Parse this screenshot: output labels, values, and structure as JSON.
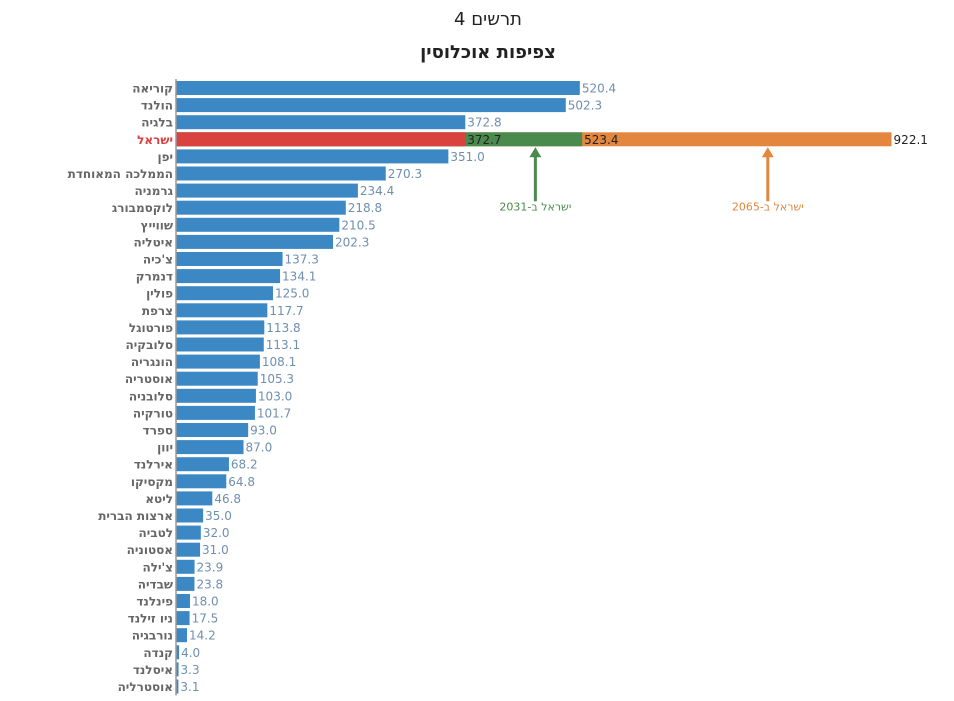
{
  "chart_data": {
    "type": "bar",
    "title": "תרשים 4",
    "subtitle": "צפיפות אוכלוסין",
    "categories": [
      "קוריאה",
      "הולנד",
      "בלגיה",
      "ישראל",
      "יפן",
      "הממלכה המאוחדת",
      "גרמניה",
      "לוקסמבורג",
      "שווייץ",
      "איטליה",
      "צ'כיה",
      "דנמרק",
      "פולין",
      "צרפת",
      "פורטוגל",
      "סלובקיה",
      "הונגריה",
      "אוסטריה",
      "סלובניה",
      "טורקיה",
      "ספרד",
      "יוון",
      "אירלנד",
      "מקסיקו",
      "ליטא",
      "ארצות הברית",
      "לטביה",
      "אסטוניה",
      "צ'ילה",
      "שבדיה",
      "פינלנד",
      "ניו זילנד",
      "נורבגיה",
      "קנדה",
      "איסלנד",
      "אוסטרליה"
    ],
    "values": [
      520.4,
      502.3,
      372.8,
      372.7,
      351.0,
      270.3,
      234.4,
      218.8,
      210.5,
      202.3,
      137.3,
      134.1,
      125.0,
      117.7,
      113.8,
      113.1,
      108.1,
      105.3,
      103.0,
      101.7,
      93.0,
      87.0,
      68.2,
      64.8,
      46.8,
      35.0,
      32.0,
      31.0,
      23.9,
      23.8,
      18.0,
      17.5,
      14.2,
      4.0,
      3.3,
      3.1
    ],
    "value_labels": [
      "520.4",
      "502.3",
      "372.8",
      "372.7",
      "351.0",
      "270.3",
      "234.4",
      "218.8",
      "210.5",
      "202.3",
      "137.3",
      "134.1",
      "125.0",
      "117.7",
      "113.8",
      "113.1",
      "108.1",
      "105.3",
      "103.0",
      "101.7",
      "93.0",
      "87.0",
      "68.2",
      "64.8",
      "46.8",
      "35.0",
      "32.0",
      "31.0",
      "23.9",
      "23.8",
      "18.0",
      "17.5",
      "14.2",
      "4.0",
      "3.3",
      "3.1"
    ],
    "colors": [
      "#3b88c4",
      "#3b88c4",
      "#3b88c4",
      "#d9423e",
      "#3b88c4",
      "#3b88c4",
      "#3b88c4",
      "#3b88c4",
      "#3b88c4",
      "#3b88c4",
      "#3b88c4",
      "#3b88c4",
      "#3b88c4",
      "#3b88c4",
      "#3b88c4",
      "#3b88c4",
      "#3b88c4",
      "#3b88c4",
      "#3b88c4",
      "#3b88c4",
      "#3b88c4",
      "#3b88c4",
      "#3b88c4",
      "#3b88c4",
      "#3b88c4",
      "#3b88c4",
      "#3b88c4",
      "#3b88c4",
      "#3b88c4",
      "#3b88c4",
      "#3b88c4",
      "#3b88c4",
      "#3b88c4",
      "#3b88c4",
      "#3b88c4",
      "#3b88c4"
    ],
    "series": [
      {
        "name": "ישראל ב-2031",
        "color": "#4a8a4c",
        "values": [
          null,
          null,
          null,
          523.4,
          null,
          null,
          null,
          null,
          null,
          null,
          null,
          null,
          null,
          null,
          null,
          null,
          null,
          null,
          null,
          null,
          null,
          null,
          null,
          null,
          null,
          null,
          null,
          null,
          null,
          null,
          null,
          null,
          null,
          null,
          null,
          null
        ]
      },
      {
        "name": "ישראל ב-2065",
        "color": "#e3873f",
        "values": [
          null,
          null,
          null,
          922.1,
          null,
          null,
          null,
          null,
          null,
          null,
          null,
          null,
          null,
          null,
          null,
          null,
          null,
          null,
          null,
          null,
          null,
          null,
          null,
          null,
          null,
          null,
          null,
          null,
          null,
          null,
          null,
          null,
          null,
          null,
          null,
          null
        ]
      }
    ]
  }
}
